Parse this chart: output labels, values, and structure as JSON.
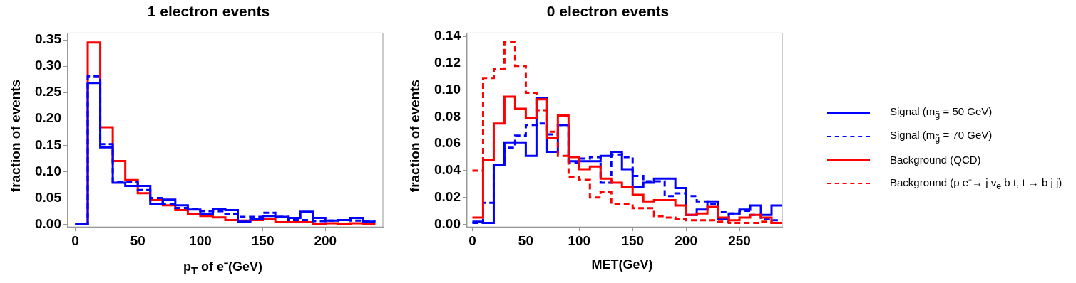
{
  "chart_data": [
    {
      "type": "histogram",
      "title": "1 electron events",
      "xlabel": "p$_{T}$ of e⁻(GeV)",
      "ylabel": "fraction of events",
      "bins": [
        0,
        10,
        20,
        30,
        40,
        50,
        60,
        70,
        80,
        90,
        100,
        110,
        120,
        130,
        140,
        150,
        160,
        170,
        180,
        190,
        200,
        210,
        220,
        230,
        240
      ],
      "xlim": [
        -6,
        246
      ],
      "xticks": [
        0,
        50,
        100,
        150,
        200
      ],
      "ylim": [
        -0.005,
        0.363
      ],
      "yticks": [
        {
          "value": 0,
          "label": "0.00"
        },
        {
          "value": 0.05,
          "label": "0.05"
        },
        {
          "value": 0.1,
          "label": "0.10"
        },
        {
          "value": 0.15,
          "label": "0.15"
        },
        {
          "value": 0.2,
          "label": "0.20"
        },
        {
          "value": 0.25,
          "label": "0.25"
        },
        {
          "value": 0.3,
          "label": "0.30"
        },
        {
          "value": 0.35,
          "label": "0.35"
        }
      ],
      "grid": false,
      "legend": false,
      "series": [
        {
          "color": "#ff0000",
          "line_style": "solid",
          "values": [
            0,
            0.345,
            0.184,
            0.12,
            0.084,
            0.059,
            0.046,
            0.036,
            0.027,
            0.02,
            0.016,
            0.013,
            0.008,
            0.007,
            0.008,
            0.01,
            0.004,
            0.004,
            0.004,
            0.001,
            0.002,
            0.001,
            0.002,
            0.001
          ]
        },
        {
          "color": "#0000fe",
          "line_style": "dashed",
          "values": [
            0,
            0.281,
            0.152,
            0.08,
            0.08,
            0.065,
            0.05,
            0.039,
            0.031,
            0.029,
            0.025,
            0.025,
            0.019,
            0.014,
            0.014,
            0.022,
            0.014,
            0.008,
            0.008,
            0.006,
            0.007,
            0.008,
            0.007,
            0.006
          ]
        },
        {
          "color": "#0000ff",
          "line_style": "solid",
          "values": [
            0,
            0.268,
            0.146,
            0.079,
            0.073,
            0.073,
            0.038,
            0.047,
            0.036,
            0.028,
            0.019,
            0.029,
            0.027,
            0.005,
            0.01,
            0.016,
            0.014,
            0.012,
            0.024,
            0.012,
            0.007,
            0.008,
            0.012,
            0.005
          ]
        }
      ]
    },
    {
      "type": "histogram",
      "title": "0 electron events",
      "xlabel": "MET(GeV)",
      "ylabel": "fraction of events",
      "bins": [
        0,
        10,
        20,
        30,
        40,
        50,
        60,
        70,
        80,
        90,
        100,
        110,
        120,
        130,
        140,
        150,
        160,
        170,
        180,
        190,
        200,
        210,
        220,
        230,
        240,
        250,
        260,
        270,
        280,
        290
      ],
      "xlim": [
        -5,
        290
      ],
      "xticks": [
        0,
        50,
        100,
        150,
        200,
        250
      ],
      "ylim": [
        -0.002,
        0.1425
      ],
      "yticks": [
        {
          "value": 0,
          "label": "0.00"
        },
        {
          "value": 0.02,
          "label": "0.02"
        },
        {
          "value": 0.04,
          "label": "0.04"
        },
        {
          "value": 0.06,
          "label": "0.06"
        },
        {
          "value": 0.08,
          "label": "0.08"
        },
        {
          "value": 0.1,
          "label": "0.10"
        },
        {
          "value": 0.12,
          "label": "0.12"
        },
        {
          "value": 0.14,
          "label": "0.14"
        }
      ],
      "grid": false,
      "legend": "right",
      "series": [
        {
          "name": "Signal (m$_{g̃}$ = 50 GeV)",
          "color": "#0000ff",
          "line_style": "solid",
          "values": [
            0.002,
            0.001,
            0.044,
            0.061,
            0.061,
            0.051,
            0.094,
            0.054,
            0.074,
            0.047,
            0.047,
            0.047,
            0.051,
            0.054,
            0.041,
            0.028,
            0.031,
            0.034,
            0.034,
            0.027,
            0.007,
            0.011,
            0.017,
            0.004,
            0.008,
            0.011,
            0.014,
            0.007,
            0.014
          ]
        },
        {
          "name": "Signal (m$_{g̃}$ = 70 GeV)",
          "color": "#0000fe",
          "line_style": "dashed",
          "values": [
            0.001,
            0.016,
            0.044,
            0.057,
            0.066,
            0.074,
            0.075,
            0.067,
            0.074,
            0.046,
            0.049,
            0.05,
            0.031,
            0.052,
            0.05,
            0.036,
            0.032,
            0.032,
            0.021,
            0.023,
            0.021,
            0.017,
            0.015,
            0.009,
            0.008,
            0.01,
            0.007,
            0.004,
            0.003
          ]
        },
        {
          "name": "Background (QCD)",
          "color": "#ff0000",
          "line_style": "solid",
          "values": [
            0.005,
            0.048,
            0.075,
            0.095,
            0.086,
            0.079,
            0.093,
            0.064,
            0.081,
            0.05,
            0.041,
            0.043,
            0.034,
            0.031,
            0.028,
            0.022,
            0.017,
            0.018,
            0.018,
            0.014,
            0.007,
            0.008,
            0.013,
            0.005,
            0.003,
            0.005,
            0.007,
            0.005,
            0.001
          ]
        },
        {
          "name": "Background (p e⁻→ j ν$_{e}$ b̄ t, t → b j j)",
          "color": "#fe0000",
          "line_style": "dashed",
          "values": [
            0.04,
            0.109,
            0.116,
            0.136,
            0.118,
            0.098,
            0.085,
            0.069,
            0.051,
            0.035,
            0.033,
            0.02,
            0.024,
            0.015,
            0.015,
            0.012,
            0.012,
            0.006,
            0.005,
            0.004,
            0.003,
            0.003,
            0.003,
            0.002,
            0.001,
            0.001,
            0.001,
            0.002,
            0.001
          ]
        }
      ]
    }
  ]
}
